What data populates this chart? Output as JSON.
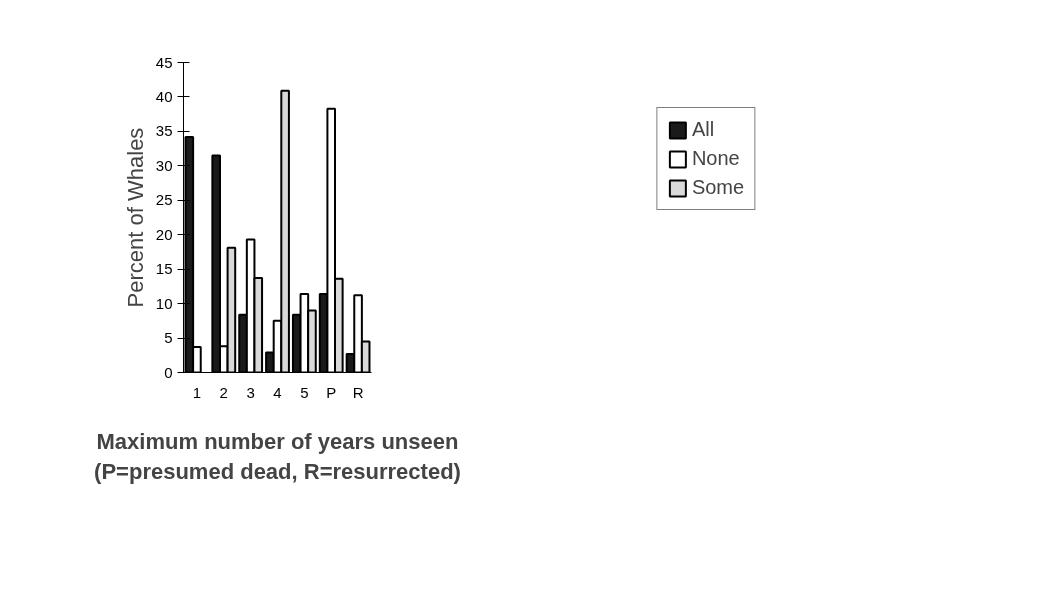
{
  "chart_data": {
    "type": "bar",
    "ylabel": "Percent of Whales",
    "xlabel": "Maximum number of years unseen\n(P=presumed dead, R=resurrected)",
    "categories": [
      "1",
      "2",
      "3",
      "4",
      "5",
      "P",
      "R"
    ],
    "series": [
      {
        "name": "All",
        "color": "#1a1a1a",
        "values": [
          34.2,
          31.5,
          8.4,
          2.9,
          8.4,
          11.4,
          2.7
        ]
      },
      {
        "name": "None",
        "color": "#ffffff",
        "values": [
          3.7,
          3.8,
          19.3,
          7.5,
          11.4,
          38.3,
          11.2
        ]
      },
      {
        "name": "Some",
        "color": "#d9d9d9",
        "values": [
          null,
          18.1,
          13.7,
          40.9,
          9.0,
          13.6,
          4.5
        ]
      }
    ],
    "ylim": [
      0,
      45
    ],
    "yticks": [
      0,
      5,
      10,
      15,
      20,
      25,
      30,
      35,
      40,
      45
    ],
    "grid": false,
    "legend": "right"
  }
}
